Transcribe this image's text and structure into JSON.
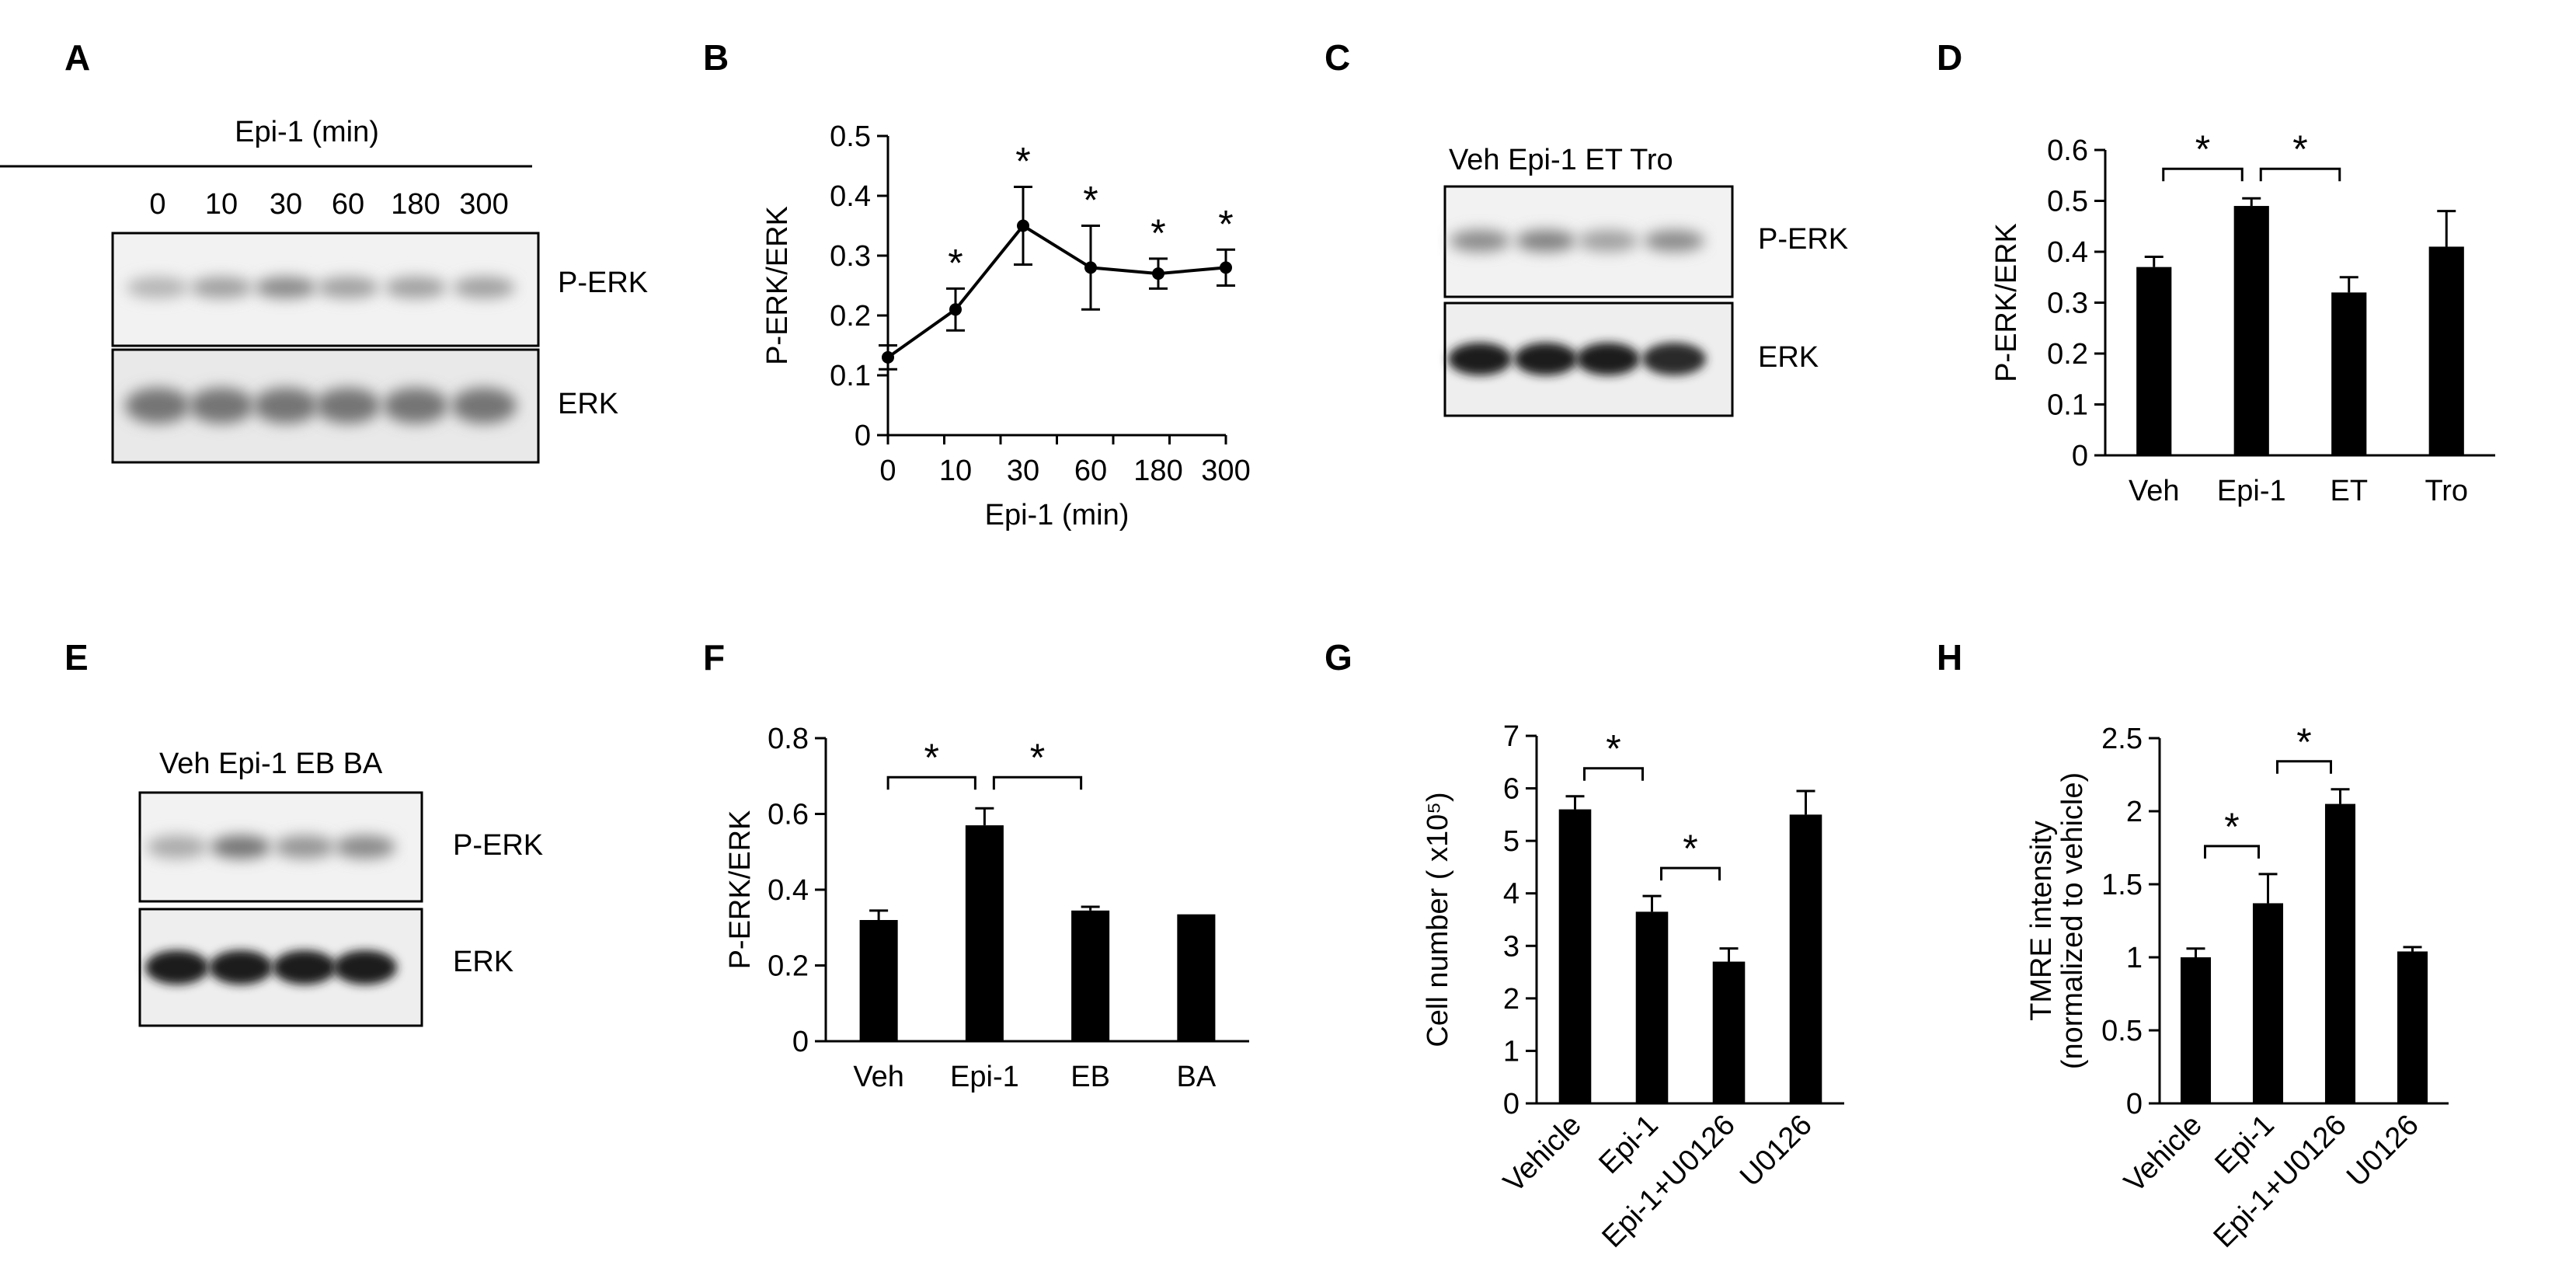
{
  "panel_labels": [
    "A",
    "B",
    "C",
    "D",
    "E",
    "F",
    "G",
    "H"
  ],
  "blot_A": {
    "header": "Epi-1 (min)",
    "lanes": [
      "0",
      "10",
      "30",
      "60",
      "180",
      "300"
    ],
    "band_labels": [
      "P-ERK",
      "ERK"
    ],
    "pERK_intensity": [
      0.25,
      0.35,
      0.45,
      0.35,
      0.35,
      0.35
    ],
    "ERK_intensity": [
      0.55,
      0.55,
      0.55,
      0.55,
      0.55,
      0.55
    ]
  },
  "blot_C": {
    "lanes_label": "Veh Epi-1 ET Tro",
    "band_labels": [
      "P-ERK",
      "ERK"
    ],
    "pERK_intensity": [
      0.45,
      0.5,
      0.35,
      0.45
    ],
    "ERK_intensity": [
      0.95,
      0.95,
      0.95,
      0.9
    ]
  },
  "blot_E": {
    "lanes_label": "Veh Epi-1 EB BA",
    "band_labels": [
      "P-ERK",
      "ERK"
    ],
    "pERK_intensity": [
      0.3,
      0.55,
      0.4,
      0.45
    ],
    "ERK_intensity": [
      0.95,
      0.95,
      0.95,
      0.95
    ]
  },
  "chart_data": [
    {
      "panel": "B",
      "type": "line",
      "categories": [
        "0",
        "10",
        "30",
        "60",
        "180",
        "300"
      ],
      "values": [
        0.13,
        0.21,
        0.35,
        0.28,
        0.27,
        0.28
      ],
      "errors": [
        0.02,
        0.035,
        0.065,
        0.07,
        0.025,
        0.03
      ],
      "significant": [
        false,
        true,
        true,
        true,
        true,
        true
      ],
      "xlabel": "Epi-1 (min)",
      "ylabel": "P-ERK/ERK",
      "ylim": [
        0,
        0.5
      ],
      "yticks": [
        "0",
        "0.1",
        "0.2",
        "0.3",
        "0.4",
        "0.5"
      ]
    },
    {
      "panel": "D",
      "type": "bar",
      "categories": [
        "Veh",
        "Epi-1",
        "ET",
        "Tro"
      ],
      "values": [
        0.37,
        0.49,
        0.32,
        0.41
      ],
      "errors": [
        0.02,
        0.015,
        0.03,
        0.07
      ],
      "brackets": [
        [
          0,
          1
        ],
        [
          1,
          2
        ]
      ],
      "ylabel": "P-ERK/ERK",
      "ylim": [
        0,
        0.6
      ],
      "yticks": [
        "0",
        "0.1",
        "0.2",
        "0.3",
        "0.4",
        "0.5",
        "0.6"
      ]
    },
    {
      "panel": "F",
      "type": "bar",
      "categories": [
        "Veh",
        "Epi-1",
        "EB",
        "BA"
      ],
      "values": [
        0.32,
        0.57,
        0.345,
        0.335
      ],
      "errors": [
        0.025,
        0.045,
        0.01,
        0.0
      ],
      "brackets": [
        [
          0,
          1
        ],
        [
          1,
          2
        ]
      ],
      "ylabel": "P-ERK/ERK",
      "ylim": [
        0,
        0.8
      ],
      "yticks": [
        "0",
        "0.2",
        "0.4",
        "0.6",
        "0.8"
      ]
    },
    {
      "panel": "G",
      "type": "bar",
      "categories": [
        "Vehicle",
        "Epi-1",
        "Epi-1+U0126",
        "U0126"
      ],
      "values": [
        5.6,
        3.65,
        2.7,
        5.5
      ],
      "errors": [
        0.25,
        0.3,
        0.25,
        0.45
      ],
      "brackets": [
        [
          0,
          1
        ],
        [
          1,
          2
        ]
      ],
      "ylabel": "Cell number ( x10⁵)",
      "ylim": [
        0,
        7
      ],
      "yticks": [
        "0",
        "1",
        "2",
        "3",
        "4",
        "5",
        "6",
        "7"
      ]
    },
    {
      "panel": "H",
      "type": "bar",
      "categories": [
        "Vehicle",
        "Epi-1",
        "Epi-1+U0126",
        "U0126"
      ],
      "values": [
        1.0,
        1.37,
        2.05,
        1.04
      ],
      "errors": [
        0.06,
        0.2,
        0.1,
        0.03
      ],
      "brackets": [
        [
          0,
          1
        ],
        [
          1,
          2
        ]
      ],
      "ylabel": "TMRE intensity",
      "ylabel2": "(normalized to vehicle)",
      "ylim": [
        0,
        2.5
      ],
      "yticks": [
        "0",
        "0.5",
        "1",
        "1.5",
        "2",
        "2.5"
      ]
    }
  ],
  "star": "*"
}
